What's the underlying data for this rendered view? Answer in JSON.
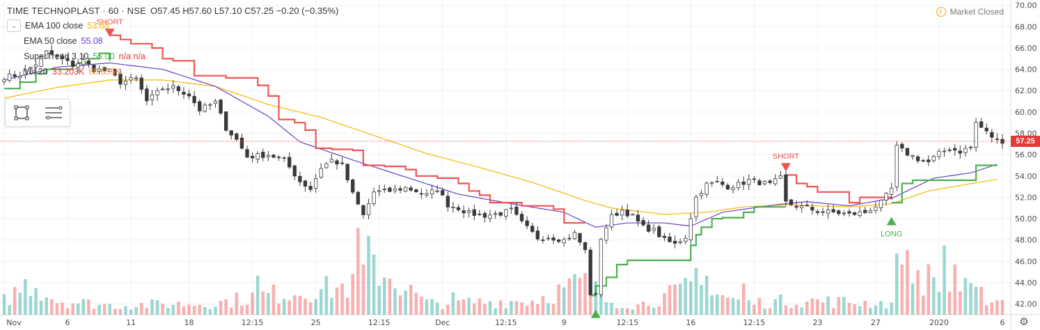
{
  "header": {
    "symbol_title": "TIME TECHNOPLAST · 60 · NSE",
    "ohlc": "O57.45 H57.60 L57.10 C57.25 −0.20 (−0.35%)"
  },
  "studies": [
    {
      "label": "EMA 100 close",
      "value": "53.68",
      "value_color": "#f5b800"
    },
    {
      "label": "EMA 50 close",
      "value": "55.08",
      "value_color": "#6a3fc5"
    },
    {
      "label": "SuperTrend 3 10",
      "value": "55.00",
      "value_color": "#4caf50",
      "extra": "n/a n/a",
      "extra_color": "#e53935"
    },
    {
      "label": "Vol 20",
      "value": "33.203K",
      "value_color": "#e53935",
      "extra": "85.655K",
      "extra_color": "#f39c5a"
    }
  ],
  "market_status": {
    "label": "Market Closed",
    "icon": "exclamation-icon"
  },
  "toolbar": {
    "icons": [
      "rectangle-select-icon",
      "horizontal-lines-icon"
    ]
  },
  "colors": {
    "up": "#26a69a",
    "down": "#ef5350",
    "candle_body": "#3a3a3a",
    "ema100": "#f5b800",
    "ema50": "#6a3fc5",
    "supertrend_down": "#ef5350",
    "supertrend_up": "#4caf50",
    "last_price": "#e53935"
  },
  "chart_data": {
    "type": "candlestick",
    "y_axis": {
      "min": 41,
      "max": 70.5,
      "ticks": [
        "42.00",
        "44.00",
        "46.00",
        "48.00",
        "50.00",
        "52.00",
        "54.00",
        "56.00",
        "58.00",
        "60.00",
        "62.00",
        "64.00",
        "66.00",
        "68.00",
        "70.00"
      ]
    },
    "x_axis": {
      "labels": [
        "Nov",
        "6",
        "11",
        "18",
        "12:15",
        "25",
        "12:15",
        "Dec",
        "12:15",
        "9",
        "12:15",
        "16",
        "12:15",
        "23",
        "27",
        "2020",
        "6"
      ]
    },
    "last_price": 57.25,
    "last_price_label": "57.25",
    "price_anchors": [
      [
        0,
        63.3
      ],
      [
        3,
        63.5
      ],
      [
        6,
        64.5
      ],
      [
        8,
        65.6
      ],
      [
        10,
        65.2
      ],
      [
        13,
        64.4
      ],
      [
        15,
        64.8
      ],
      [
        17,
        64.0
      ],
      [
        20,
        63.8
      ],
      [
        22,
        62.8
      ],
      [
        25,
        63.1
      ],
      [
        27,
        61.0
      ],
      [
        30,
        62.2
      ],
      [
        32,
        62.3
      ],
      [
        35,
        61.6
      ],
      [
        37,
        60.2
      ],
      [
        40,
        60.9
      ],
      [
        42,
        58.5
      ],
      [
        44,
        57.4
      ],
      [
        46,
        55.8
      ],
      [
        50,
        56.0
      ],
      [
        53,
        55.5
      ],
      [
        56,
        53.5
      ],
      [
        58,
        52.8
      ],
      [
        60,
        54.8
      ],
      [
        62,
        55.5
      ],
      [
        64,
        55.0
      ],
      [
        66,
        52.3
      ],
      [
        68,
        50.3
      ],
      [
        70,
        52.5
      ],
      [
        73,
        52.6
      ],
      [
        76,
        52.9
      ],
      [
        78,
        52.6
      ],
      [
        80,
        52.2
      ],
      [
        82,
        52.8
      ],
      [
        84,
        51.3
      ],
      [
        86,
        51.0
      ],
      [
        88,
        50.5
      ],
      [
        91,
        50.3
      ],
      [
        94,
        50.5
      ],
      [
        96,
        50.8
      ],
      [
        98,
        49.6
      ],
      [
        101,
        48.2
      ],
      [
        103,
        48.3
      ],
      [
        106,
        48.0
      ],
      [
        108,
        48.6
      ],
      [
        110,
        47.0
      ],
      [
        111,
        43.0
      ],
      [
        112,
        42.8
      ],
      [
        113,
        48.2
      ],
      [
        115,
        50.2
      ],
      [
        117,
        50.8
      ],
      [
        119,
        50.2
      ],
      [
        121,
        49.2
      ],
      [
        123,
        48.9
      ],
      [
        125,
        48.0
      ],
      [
        127,
        47.6
      ],
      [
        129,
        48.3
      ],
      [
        131,
        52.0
      ],
      [
        133,
        53.2
      ],
      [
        135,
        53.4
      ],
      [
        137,
        53.0
      ],
      [
        139,
        53.2
      ],
      [
        141,
        53.6
      ],
      [
        143,
        53.4
      ],
      [
        145,
        53.2
      ],
      [
        147,
        53.8
      ],
      [
        148,
        51.5
      ],
      [
        150,
        51.2
      ],
      [
        152,
        51.0
      ],
      [
        154,
        50.7
      ],
      [
        157,
        50.6
      ],
      [
        160,
        50.4
      ],
      [
        163,
        50.6
      ],
      [
        166,
        51.5
      ],
      [
        168,
        52.8
      ],
      [
        169,
        56.7
      ],
      [
        171,
        56.1
      ],
      [
        173,
        55.6
      ],
      [
        175,
        55.3
      ],
      [
        177,
        56.1
      ],
      [
        179,
        56.6
      ],
      [
        181,
        56.3
      ],
      [
        183,
        56.7
      ],
      [
        184,
        59.0
      ],
      [
        186,
        58.1
      ],
      [
        188,
        57.3
      ]
    ],
    "volume_anchors": [
      [
        0,
        0.15
      ],
      [
        5,
        0.35
      ],
      [
        10,
        0.15
      ],
      [
        20,
        0.1
      ],
      [
        40,
        0.12
      ],
      [
        48,
        0.2
      ],
      [
        66,
        0.3
      ],
      [
        67,
        0.65
      ],
      [
        80,
        0.12
      ],
      [
        100,
        0.15
      ],
      [
        110,
        0.35
      ],
      [
        111,
        0.18
      ],
      [
        120,
        0.1
      ],
      [
        131,
        0.3
      ],
      [
        140,
        0.12
      ],
      [
        150,
        0.15
      ],
      [
        168,
        0.12
      ],
      [
        169,
        0.4
      ],
      [
        170,
        0.5
      ],
      [
        178,
        0.3
      ],
      [
        183,
        0.25
      ],
      [
        188,
        0.15
      ]
    ],
    "volume_spikes": [
      [
        48,
        0.35
      ],
      [
        67,
        0.78
      ],
      [
        68,
        0.45
      ],
      [
        85,
        0.2
      ],
      [
        111,
        0.45
      ],
      [
        112,
        0.3
      ],
      [
        131,
        0.42
      ],
      [
        133,
        0.35
      ],
      [
        140,
        0.28
      ],
      [
        169,
        0.55
      ],
      [
        170,
        0.45
      ],
      [
        178,
        0.62
      ],
      [
        180,
        0.45
      ],
      [
        184,
        0.25
      ]
    ],
    "ema100_anchors": [
      [
        0,
        61.3
      ],
      [
        10,
        62.3
      ],
      [
        20,
        63.0
      ],
      [
        30,
        63.0
      ],
      [
        40,
        62.4
      ],
      [
        50,
        60.7
      ],
      [
        60,
        59.5
      ],
      [
        70,
        57.8
      ],
      [
        80,
        56.1
      ],
      [
        90,
        54.8
      ],
      [
        100,
        53.4
      ],
      [
        110,
        51.7
      ],
      [
        115,
        51.0
      ],
      [
        125,
        50.4
      ],
      [
        133,
        50.6
      ],
      [
        140,
        51.1
      ],
      [
        148,
        51.3
      ],
      [
        160,
        51.1
      ],
      [
        168,
        51.4
      ],
      [
        175,
        52.6
      ],
      [
        188,
        53.7
      ]
    ],
    "ema50_anchors": [
      [
        0,
        63.0
      ],
      [
        10,
        64.2
      ],
      [
        20,
        64.6
      ],
      [
        30,
        64.0
      ],
      [
        40,
        62.4
      ],
      [
        50,
        59.6
      ],
      [
        56,
        57.2
      ],
      [
        66,
        55.5
      ],
      [
        76,
        53.9
      ],
      [
        86,
        52.3
      ],
      [
        96,
        51.4
      ],
      [
        106,
        50.6
      ],
      [
        112,
        49.2
      ],
      [
        118,
        49.6
      ],
      [
        125,
        49.6
      ],
      [
        130,
        49.3
      ],
      [
        136,
        50.6
      ],
      [
        146,
        51.3
      ],
      [
        152,
        51.6
      ],
      [
        160,
        51.2
      ],
      [
        168,
        51.9
      ],
      [
        176,
        53.8
      ],
      [
        183,
        54.3
      ],
      [
        188,
        55.1
      ]
    ],
    "supertrend_segments": [
      {
        "trend": "up",
        "points": [
          [
            0,
            62.2
          ],
          [
            3,
            62.8
          ],
          [
            6,
            63.6
          ],
          [
            8,
            64.0
          ],
          [
            10,
            64.0
          ],
          [
            13,
            64.4
          ],
          [
            14,
            64.6
          ],
          [
            16,
            65.0
          ],
          [
            18,
            65.5
          ],
          [
            20,
            64.8
          ]
        ]
      },
      {
        "trend": "down",
        "points": [
          [
            20,
            67.2
          ],
          [
            22,
            66.8
          ],
          [
            24,
            66.4
          ],
          [
            28,
            66.0
          ],
          [
            30,
            65.0
          ],
          [
            32,
            64.8
          ],
          [
            36,
            63.4
          ],
          [
            42,
            63.2
          ],
          [
            46,
            63.2
          ],
          [
            48,
            62.5
          ],
          [
            50,
            61.5
          ],
          [
            52,
            59.3
          ],
          [
            55,
            59.0
          ],
          [
            57,
            58.3
          ],
          [
            59,
            56.6
          ],
          [
            62,
            56.5
          ],
          [
            66,
            56.4
          ],
          [
            68,
            55.0
          ],
          [
            72,
            54.9
          ],
          [
            76,
            54.6
          ],
          [
            78,
            54.0
          ],
          [
            82,
            53.8
          ],
          [
            86,
            53.3
          ],
          [
            88,
            52.6
          ],
          [
            90,
            52.2
          ],
          [
            92,
            51.5
          ],
          [
            98,
            51.2
          ],
          [
            104,
            50.9
          ],
          [
            106,
            49.6
          ],
          [
            108,
            49.6
          ],
          [
            110,
            49.6
          ]
        ]
      },
      {
        "trend": "up",
        "points": [
          [
            111,
            42.8
          ],
          [
            112,
            43.7
          ],
          [
            114,
            44.5
          ],
          [
            116,
            45.7
          ],
          [
            118,
            46.1
          ],
          [
            120,
            46.1
          ],
          [
            122,
            46.1
          ],
          [
            126,
            46.1
          ],
          [
            128,
            46.1
          ],
          [
            130,
            47.5
          ],
          [
            131,
            48.5
          ],
          [
            132,
            49.2
          ],
          [
            134,
            50.0
          ],
          [
            136,
            50.1
          ],
          [
            140,
            50.6
          ],
          [
            142,
            51.1
          ],
          [
            146,
            51.1
          ],
          [
            148,
            51.1
          ]
        ]
      },
      {
        "trend": "down",
        "points": [
          [
            148,
            54.1
          ],
          [
            150,
            53.3
          ],
          [
            152,
            53.0
          ],
          [
            154,
            52.5
          ],
          [
            156,
            52.5
          ],
          [
            158,
            52.5
          ],
          [
            160,
            51.5
          ],
          [
            162,
            52.0
          ],
          [
            164,
            52.0
          ],
          [
            166,
            52.0
          ],
          [
            168,
            51.8
          ]
        ]
      },
      {
        "trend": "up",
        "points": [
          [
            168,
            51.5
          ],
          [
            170,
            53.3
          ],
          [
            172,
            53.6
          ],
          [
            174,
            53.6
          ],
          [
            176,
            53.6
          ],
          [
            180,
            53.6
          ],
          [
            182,
            53.6
          ],
          [
            184,
            55.0
          ],
          [
            188,
            55.0
          ]
        ]
      }
    ],
    "signals": [
      {
        "label": "SHORT",
        "idx": 20,
        "price": 66.9,
        "direction": "down"
      },
      {
        "label": "SHORT",
        "idx": 148,
        "price": 54.3,
        "direction": "down"
      },
      {
        "label": "",
        "idx": 112,
        "price": 41.6,
        "direction": "up"
      },
      {
        "label": "LONG",
        "idx": 168,
        "price": 50.3,
        "direction": "up"
      }
    ]
  }
}
